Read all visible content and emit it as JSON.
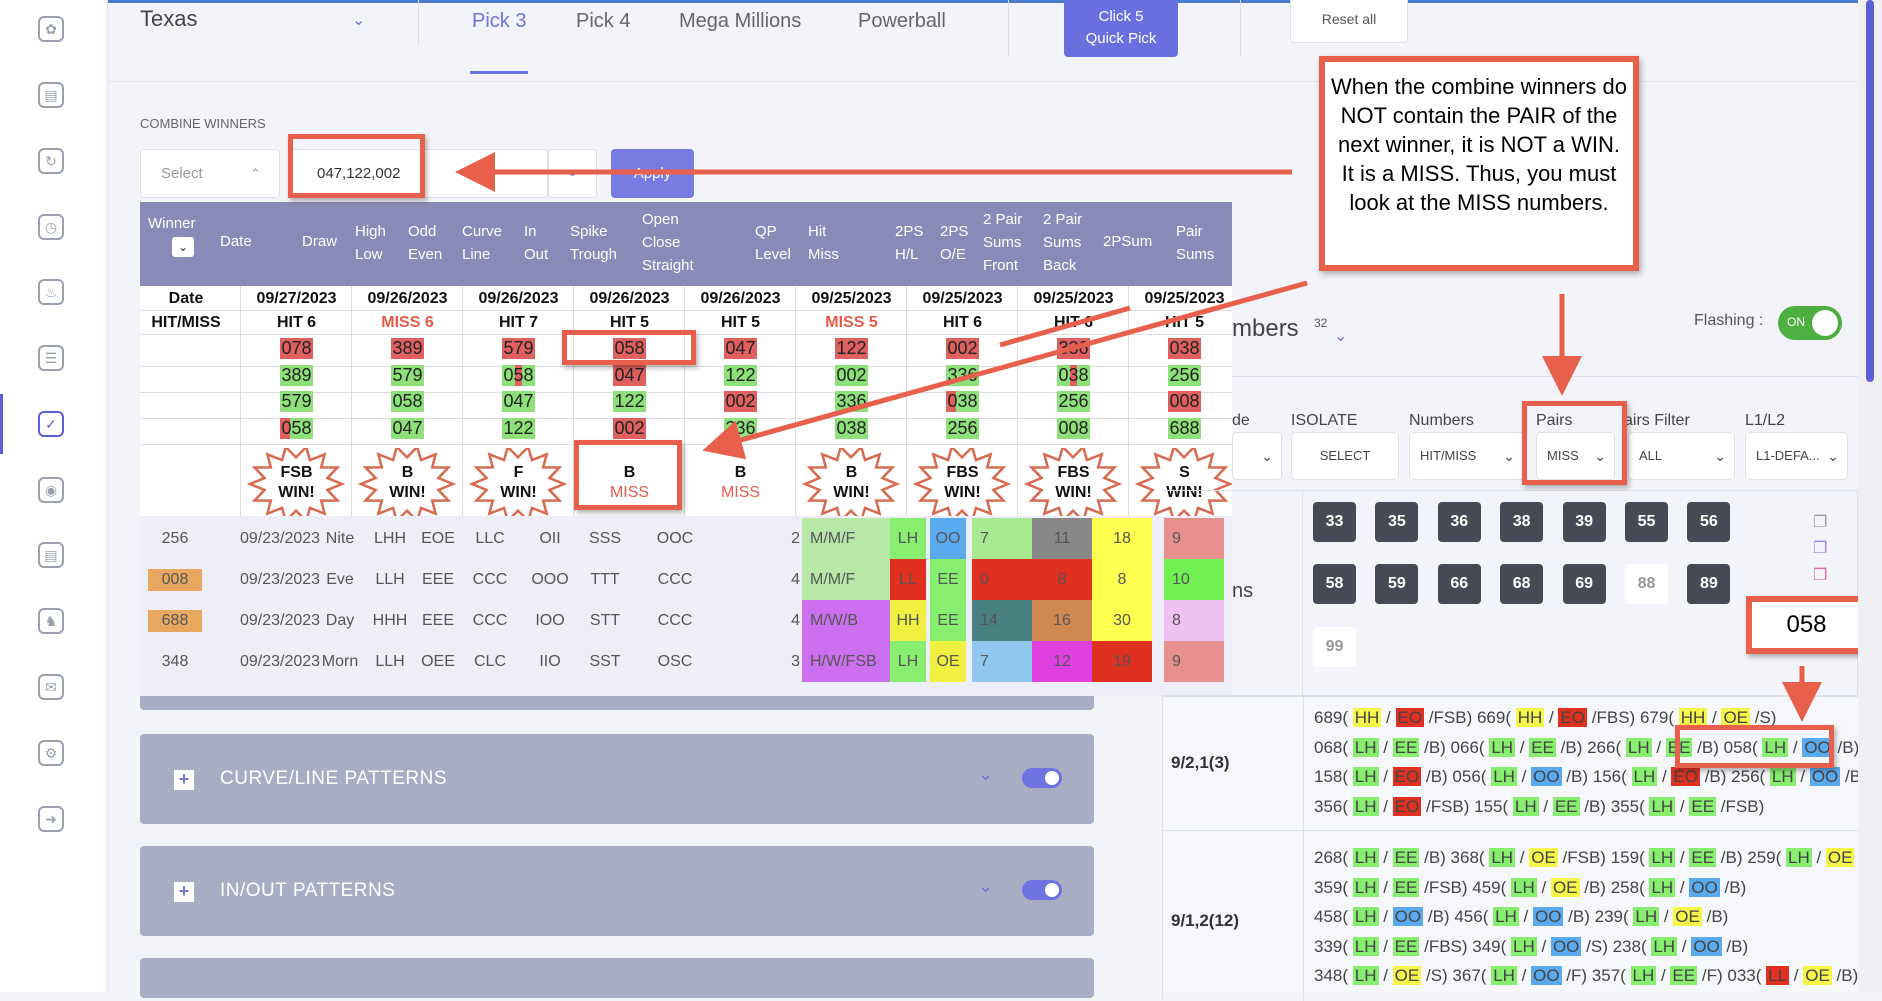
{
  "sidebar": {
    "icons": [
      "fingerprint-icon",
      "receipt-icon",
      "history-icon",
      "clock-dollar-icon",
      "alarm-icon",
      "report-icon",
      "checklist-icon",
      "coins-icon",
      "document-icon",
      "chess-icon",
      "chat-icon",
      "gear-icon",
      "logout-icon"
    ],
    "active_index": 6
  },
  "header": {
    "state": "Texas",
    "tabs": [
      "Pick 3",
      "Pick 4",
      "Mega Millions",
      "Powerball"
    ],
    "active_tab": 0,
    "quick_pick": [
      "Click 5",
      "Quick Pick"
    ],
    "reset": "Reset all"
  },
  "combine": {
    "label": "COMBINE WINNERS",
    "select_placeholder": "Select",
    "value": "047,122,002",
    "apply": "Apply"
  },
  "grid": {
    "headers": [
      [
        "Winner"
      ],
      [
        "Date"
      ],
      [
        "Draw"
      ],
      [
        "High",
        "Low"
      ],
      [
        "Odd",
        "Even"
      ],
      [
        "Curve",
        "Line"
      ],
      [
        "In",
        "Out"
      ],
      [
        "Spike",
        "Trough"
      ],
      [
        "Open",
        "Close",
        "Straight"
      ],
      [
        "QP",
        "Level"
      ],
      [
        "Hit",
        "Miss"
      ],
      [
        "2PS",
        "H/L"
      ],
      [
        "2PS",
        "O/E"
      ],
      [
        "2 Pair",
        "Sums",
        "Front"
      ],
      [
        "2 Pair",
        "Sums",
        "Back"
      ],
      [
        "2PSum"
      ],
      [
        "Pair",
        "Sums"
      ]
    ],
    "popup": {
      "row_labels": [
        "Date",
        "HIT/MISS"
      ],
      "columns": [
        {
          "date": "09/27/2023",
          "status": "HIT 6",
          "miss": false,
          "nums": [
            [
              "078",
              "r"
            ],
            [
              "389",
              "g"
            ],
            [
              "579",
              "g"
            ],
            [
              "058",
              "rg"
            ]
          ],
          "result": [
            "FSB",
            "WIN!"
          ],
          "win": true
        },
        {
          "date": "09/26/2023",
          "status": "MISS 6",
          "miss": true,
          "nums": [
            [
              "389",
              "r"
            ],
            [
              "579",
              "g"
            ],
            [
              "058",
              "g"
            ],
            [
              "047",
              "g"
            ]
          ],
          "result": [
            "B",
            "WIN!"
          ],
          "win": true
        },
        {
          "date": "09/26/2023",
          "status": "HIT 7",
          "miss": false,
          "nums": [
            [
              "579",
              "r"
            ],
            [
              "058",
              "gr"
            ],
            [
              "047",
              "g"
            ],
            [
              "122",
              "g"
            ]
          ],
          "result": [
            "F",
            "WIN!"
          ],
          "win": true
        },
        {
          "date": "09/26/2023",
          "status": "HIT 5",
          "miss": false,
          "nums": [
            [
              "058",
              "r"
            ],
            [
              "047",
              "r"
            ],
            [
              "122",
              "g"
            ],
            [
              "002",
              "r"
            ]
          ],
          "result": [
            "B",
            "MISS"
          ],
          "win": false
        },
        {
          "date": "09/26/2023",
          "status": "HIT 5",
          "miss": false,
          "nums": [
            [
              "047",
              "r"
            ],
            [
              "122",
              "g"
            ],
            [
              "002",
              "r"
            ],
            [
              "336",
              "g"
            ]
          ],
          "result": [
            "B",
            "MISS"
          ],
          "win": false
        },
        {
          "date": "09/25/2023",
          "status": "MISS 5",
          "miss": true,
          "nums": [
            [
              "122",
              "r"
            ],
            [
              "002",
              "g"
            ],
            [
              "336",
              "g"
            ],
            [
              "038",
              "g"
            ]
          ],
          "result": [
            "B",
            "WIN!"
          ],
          "win": true
        },
        {
          "date": "09/25/2023",
          "status": "HIT 6",
          "miss": false,
          "nums": [
            [
              "002",
              "r"
            ],
            [
              "336",
              "g"
            ],
            [
              "038",
              "rg"
            ],
            [
              "256",
              "g"
            ]
          ],
          "result": [
            "FBS",
            "WIN!"
          ],
          "win": true
        },
        {
          "date": "09/25/2023",
          "status": "HIT 6",
          "miss": false,
          "nums": [
            [
              "336",
              "r"
            ],
            [
              "038",
              "gr"
            ],
            [
              "256",
              "g"
            ],
            [
              "008",
              "g"
            ]
          ],
          "result": [
            "FBS",
            "WIN!"
          ],
          "win": true
        },
        {
          "date": "09/25/2023",
          "status": "HIT 5",
          "miss": false,
          "nums": [
            [
              "038",
              "r"
            ],
            [
              "256",
              "g"
            ],
            [
              "008",
              "r"
            ],
            [
              "688",
              "g"
            ]
          ],
          "result": [
            "S",
            "WIN!"
          ],
          "win": true
        }
      ]
    },
    "rows": [
      {
        "winner": "256",
        "hl_winner": false,
        "cells": [
          "09/23/2023",
          "Nite",
          "LHH",
          "EOE",
          "LLC",
          "OII",
          "SSS",
          "OOC",
          "2"
        ],
        "colored": [
          [
            "M/M/F",
            "#b8e8a8"
          ],
          [
            "LH",
            "#88ee70"
          ],
          [
            "OO",
            "#5aaaf0"
          ],
          [
            "7",
            "#a8e890"
          ],
          [
            "11",
            "#888888"
          ],
          [
            "18",
            "#ffff50"
          ],
          [
            "9",
            "#e89090"
          ]
        ]
      },
      {
        "winner": "008",
        "hl_winner": true,
        "cells": [
          "09/23/2023",
          "Eve",
          "LLH",
          "EEE",
          "CCC",
          "OOO",
          "TTT",
          "CCC",
          "4"
        ],
        "colored": [
          [
            "M/M/F",
            "#b8e8a8"
          ],
          [
            "LL",
            "#e03020"
          ],
          [
            "EE",
            "#88ee70"
          ],
          [
            "0",
            "#e03020"
          ],
          [
            "8",
            "#e03020"
          ],
          [
            "8",
            "#ffff50"
          ],
          [
            "10",
            "#70f050"
          ]
        ]
      },
      {
        "winner": "688",
        "hl_winner": true,
        "cells": [
          "09/23/2023",
          "Day",
          "HHH",
          "EEE",
          "CCC",
          "IOO",
          "STT",
          "CCC",
          "4"
        ],
        "colored": [
          [
            "M/W/B",
            "#cc70f0"
          ],
          [
            "HH",
            "#f0f040"
          ],
          [
            "EE",
            "#88ee70"
          ],
          [
            "14",
            "#4a8080"
          ],
          [
            "16",
            "#d08850"
          ],
          [
            "30",
            "#ffff50"
          ],
          [
            "8",
            "#f0c0f0"
          ]
        ]
      },
      {
        "winner": "348",
        "hl_winner": false,
        "cells": [
          "09/23/2023",
          "Morn",
          "LLH",
          "OEE",
          "CLC",
          "IIO",
          "SST",
          "OSC",
          "3"
        ],
        "colored": [
          [
            "H/W/FSB",
            "#cc70f0"
          ],
          [
            "LH",
            "#88ee70"
          ],
          [
            "OE",
            "#f0f040"
          ],
          [
            "7",
            "#90c8f0"
          ],
          [
            "12",
            "#e040e0"
          ],
          [
            "19",
            "#e03020"
          ],
          [
            "9",
            "#e89090"
          ]
        ]
      }
    ]
  },
  "panels": [
    "CURVE/LINE PATTERNS",
    "IN/OUT PATTERNS"
  ],
  "right": {
    "title_partial": "mbers",
    "count": "32",
    "flashing_label": "Flashing :",
    "flashing_state": "ON",
    "filters": [
      {
        "label": "de",
        "value": ""
      },
      {
        "label": "ISOLATE",
        "value": "SELECT"
      },
      {
        "label": "Numbers",
        "value": "HIT/MISS"
      },
      {
        "label": "Pairs",
        "value": "MISS"
      },
      {
        "label": "airs Filter",
        "value": "ALL"
      },
      {
        "label": "L1/L2",
        "value": "L1-DEFA..."
      }
    ],
    "side_partial": "ns",
    "numbers": [
      [
        "33",
        true
      ],
      [
        "35",
        true
      ],
      [
        "36",
        true
      ],
      [
        "38",
        true
      ],
      [
        "39",
        true
      ],
      [
        "55",
        true
      ],
      [
        "56",
        true
      ],
      [
        "58",
        true
      ],
      [
        "59",
        true
      ],
      [
        "66",
        true
      ],
      [
        "68",
        true
      ],
      [
        "69",
        true
      ],
      [
        "88",
        false
      ],
      [
        "89",
        true
      ],
      [
        "99",
        false
      ]
    ],
    "highlight": "058",
    "results": [
      {
        "label": "9/2,1(3)",
        "lines": [
          [
            [
              "689",
              "HH",
              "EO",
              "FSB"
            ],
            [
              "669",
              "HH",
              "EO",
              "FBS"
            ],
            [
              "679",
              "HH",
              "OE",
              "S"
            ]
          ],
          [
            [
              "068",
              "LH",
              "EE",
              "B"
            ],
            [
              "066",
              "LH",
              "EE",
              "B"
            ],
            [
              "266",
              "LH",
              "EE",
              "B"
            ],
            [
              "058",
              "LH",
              "OO",
              "B"
            ]
          ],
          [
            [
              "158",
              "LH",
              "EO",
              "B"
            ],
            [
              "056",
              "LH",
              "OO",
              "B"
            ],
            [
              "156",
              "LH",
              "EO",
              "B"
            ],
            [
              "256",
              "LH",
              "OO",
              "B"
            ]
          ],
          [
            [
              "356",
              "LH",
              "EO",
              "FSB"
            ],
            [
              "155",
              "LH",
              "EE",
              "B"
            ],
            [
              "355",
              "LH",
              "EE",
              "FSB"
            ]
          ]
        ]
      },
      {
        "label": "9/1,2(12)",
        "lines": [
          [
            [
              "268",
              "LH",
              "EE",
              "B"
            ],
            [
              "368",
              "LH",
              "OE",
              "FSB"
            ],
            [
              "159",
              "LH",
              "EE",
              "B"
            ],
            [
              "259",
              "LH",
              "OE",
              "B"
            ]
          ],
          [
            [
              "359",
              "LH",
              "EE",
              "FSB"
            ],
            [
              "459",
              "LH",
              "OE",
              "B"
            ],
            [
              "258",
              "LH",
              "OO",
              "B"
            ]
          ],
          [
            [
              "458",
              "LH",
              "OO",
              "B"
            ],
            [
              "456",
              "LH",
              "OO",
              "B"
            ],
            [
              "239",
              "LH",
              "OE",
              "B"
            ]
          ],
          [
            [
              "339",
              "LH",
              "EE",
              "FBS"
            ],
            [
              "349",
              "LH",
              "OO",
              "S"
            ],
            [
              "238",
              "LH",
              "OO",
              "B"
            ]
          ],
          [
            [
              "348",
              "LH",
              "OE",
              "S"
            ],
            [
              "367",
              "LH",
              "OO",
              "F"
            ],
            [
              "357",
              "LH",
              "EE",
              "F"
            ],
            [
              "033",
              "LL",
              "OE",
              "B"
            ]
          ]
        ]
      }
    ],
    "tag_colors": {
      "LH": "green",
      "HH": "yellow",
      "LL": "red",
      "EE": "green",
      "OO": "blue",
      "OE": "yellow",
      "EO": "red"
    }
  },
  "annotation": "When the combine winners do NOT contain the PAIR of the next winner, it is NOT a WIN. It is a MISS. Thus, you must look at the MISS numbers.",
  "colors": {
    "accent": "#6a6fe0",
    "annotation_red": "#e8604c",
    "header_purple": "#8a8ab8",
    "hit_green": "#8ee07a",
    "miss_red": "#e06060"
  }
}
